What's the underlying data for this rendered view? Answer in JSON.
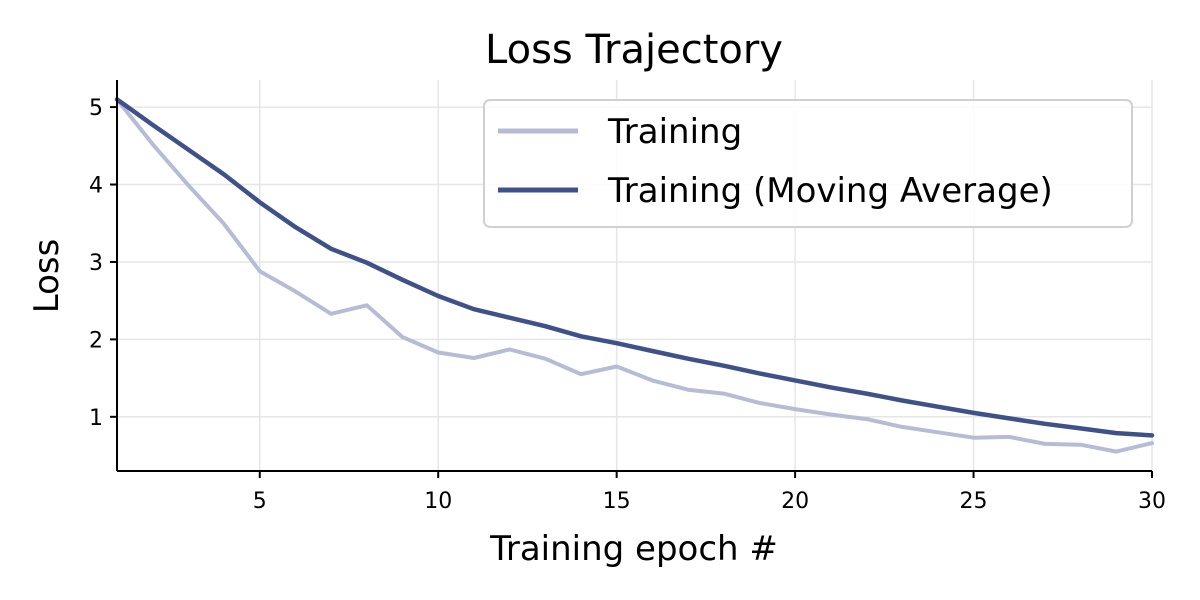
{
  "chart_data": {
    "type": "line",
    "title": "Loss Trajectory",
    "xlabel": "Training epoch #",
    "ylabel": "Loss",
    "xlim": [
      1,
      30
    ],
    "ylim": [
      0.3,
      5.35
    ],
    "xticks": [
      5,
      10,
      15,
      20,
      25,
      30
    ],
    "yticks": [
      1,
      2,
      3,
      4,
      5
    ],
    "grid": true,
    "legend_position": "top-right",
    "x": [
      1,
      2,
      3,
      4,
      5,
      6,
      7,
      8,
      9,
      10,
      11,
      12,
      13,
      14,
      15,
      16,
      17,
      18,
      19,
      20,
      21,
      22,
      23,
      24,
      25,
      26,
      27,
      28,
      29,
      30
    ],
    "series": [
      {
        "name": "Training",
        "color": "#b6bcd6",
        "values": [
          5.1,
          4.52,
          3.99,
          3.49,
          2.88,
          2.62,
          2.33,
          2.44,
          2.03,
          1.83,
          1.76,
          1.87,
          1.75,
          1.55,
          1.65,
          1.47,
          1.35,
          1.3,
          1.18,
          1.1,
          1.03,
          0.97,
          0.87,
          0.8,
          0.73,
          0.74,
          0.65,
          0.64,
          0.55,
          0.66
        ]
      },
      {
        "name": "Training (Moving Average)",
        "color": "#3f5189",
        "values": [
          5.1,
          4.77,
          4.45,
          4.13,
          3.77,
          3.45,
          3.17,
          2.99,
          2.77,
          2.56,
          2.39,
          2.28,
          2.17,
          2.04,
          1.95,
          1.85,
          1.75,
          1.66,
          1.56,
          1.47,
          1.38,
          1.3,
          1.21,
          1.13,
          1.05,
          0.98,
          0.91,
          0.85,
          0.79,
          0.76
        ]
      }
    ]
  }
}
